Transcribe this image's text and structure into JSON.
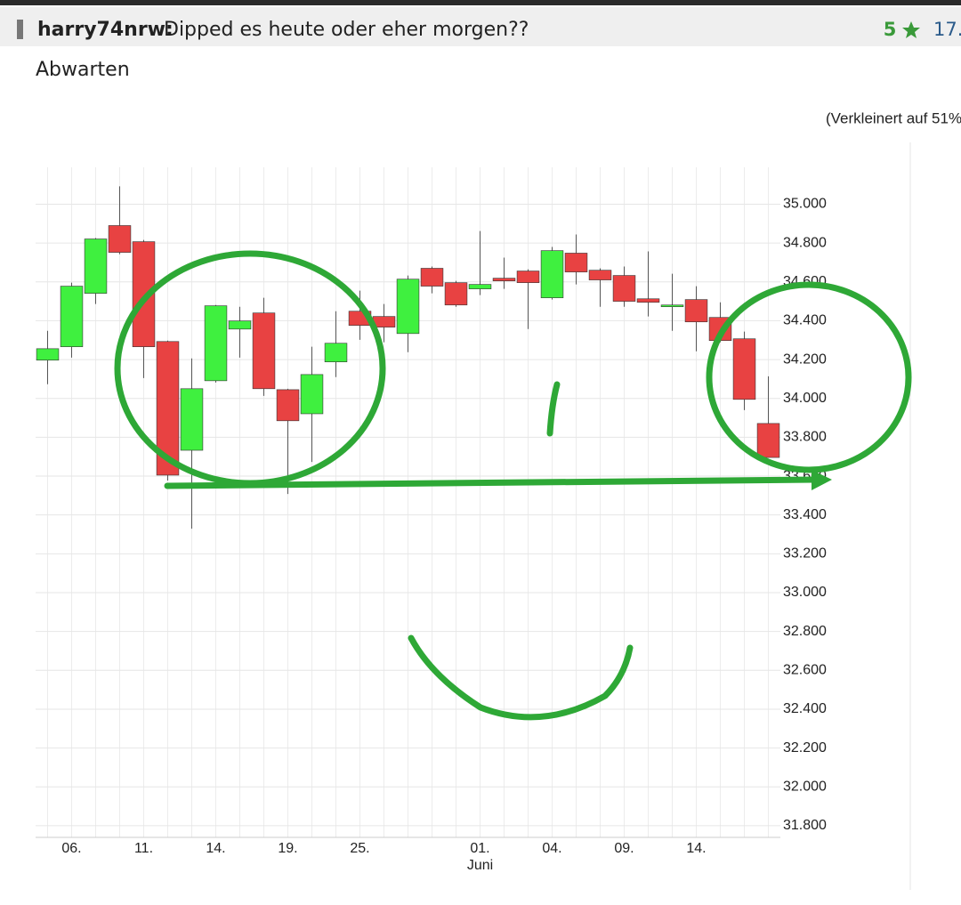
{
  "post": {
    "author": "harry74nrw:",
    "title": "Dipped es heute oder eher morgen??",
    "rating": 5,
    "date": "17.",
    "body": "Abwarten",
    "image_note": "(Verkleinert auf 51%"
  },
  "chart_data": {
    "type": "candlestick",
    "categories": [
      null,
      "06.",
      null,
      null,
      "11.",
      null,
      null,
      "14.",
      null,
      null,
      "19.",
      null,
      null,
      "25.",
      null,
      null,
      null,
      null,
      "01.",
      null,
      null,
      "04.",
      null,
      null,
      "09.",
      null,
      null,
      "14.",
      null,
      null,
      null
    ],
    "x_sublabel": "Juni",
    "x_sublabel_index": 18,
    "open": [
      34197,
      34266,
      34541,
      34890,
      34807,
      34293,
      33733,
      34091,
      34357,
      34440,
      34045,
      33921,
      34188,
      34449,
      34422,
      34334,
      34670,
      34596,
      34564,
      34619,
      34656,
      34518,
      34748,
      34660,
      34633,
      34513,
      34472,
      34509,
      34417,
      34307,
      33871
    ],
    "high": [
      34348,
      34596,
      34826,
      35092,
      34816,
      34298,
      34206,
      34481,
      34472,
      34518,
      34050,
      34266,
      34449,
      34555,
      34486,
      34633,
      34679,
      34605,
      34862,
      34725,
      34665,
      34780,
      34844,
      34670,
      34679,
      34757,
      34642,
      34578,
      34495,
      34344,
      34114
    ],
    "low": [
      34073,
      34210,
      34486,
      34743,
      34105,
      33577,
      33329,
      34082,
      34210,
      34013,
      33508,
      33673,
      34110,
      34302,
      34289,
      34238,
      34541,
      34472,
      34532,
      34564,
      34357,
      34509,
      34587,
      34472,
      34472,
      34422,
      34348,
      34243,
      34289,
      33940,
      33696
    ],
    "close": [
      34256,
      34578,
      34821,
      34752,
      34266,
      33605,
      34050,
      34477,
      34399,
      34050,
      33885,
      34123,
      34284,
      34376,
      34367,
      34614,
      34578,
      34481,
      34587,
      34605,
      34596,
      34761,
      34651,
      34610,
      34500,
      34495,
      34481,
      34394,
      34298,
      33995,
      33696
    ],
    "up_color": "#3ff03f",
    "down_color": "#e84242",
    "ylim": [
      31740,
      35190
    ],
    "yticks": [
      {
        "value": 35000,
        "label": "35.000"
      },
      {
        "value": 34800,
        "label": "34.800"
      },
      {
        "value": 34600,
        "label": "34.600"
      },
      {
        "value": 34400,
        "label": "34.400"
      },
      {
        "value": 34200,
        "label": "34.200"
      },
      {
        "value": 34000,
        "label": "34.000"
      },
      {
        "value": 33800,
        "label": "33.800"
      },
      {
        "value": 33600,
        "label": "33.600"
      },
      {
        "value": 33400,
        "label": "33.400"
      },
      {
        "value": 33200,
        "label": "33.200"
      },
      {
        "value": 33000,
        "label": "33.000"
      },
      {
        "value": 32800,
        "label": "32.800"
      },
      {
        "value": 32600,
        "label": "32.600"
      },
      {
        "value": 32400,
        "label": "32.400"
      },
      {
        "value": 32200,
        "label": "32.200"
      },
      {
        "value": 32000,
        "label": "32.000"
      },
      {
        "value": 31800,
        "label": "31.800"
      }
    ],
    "grid": true
  }
}
